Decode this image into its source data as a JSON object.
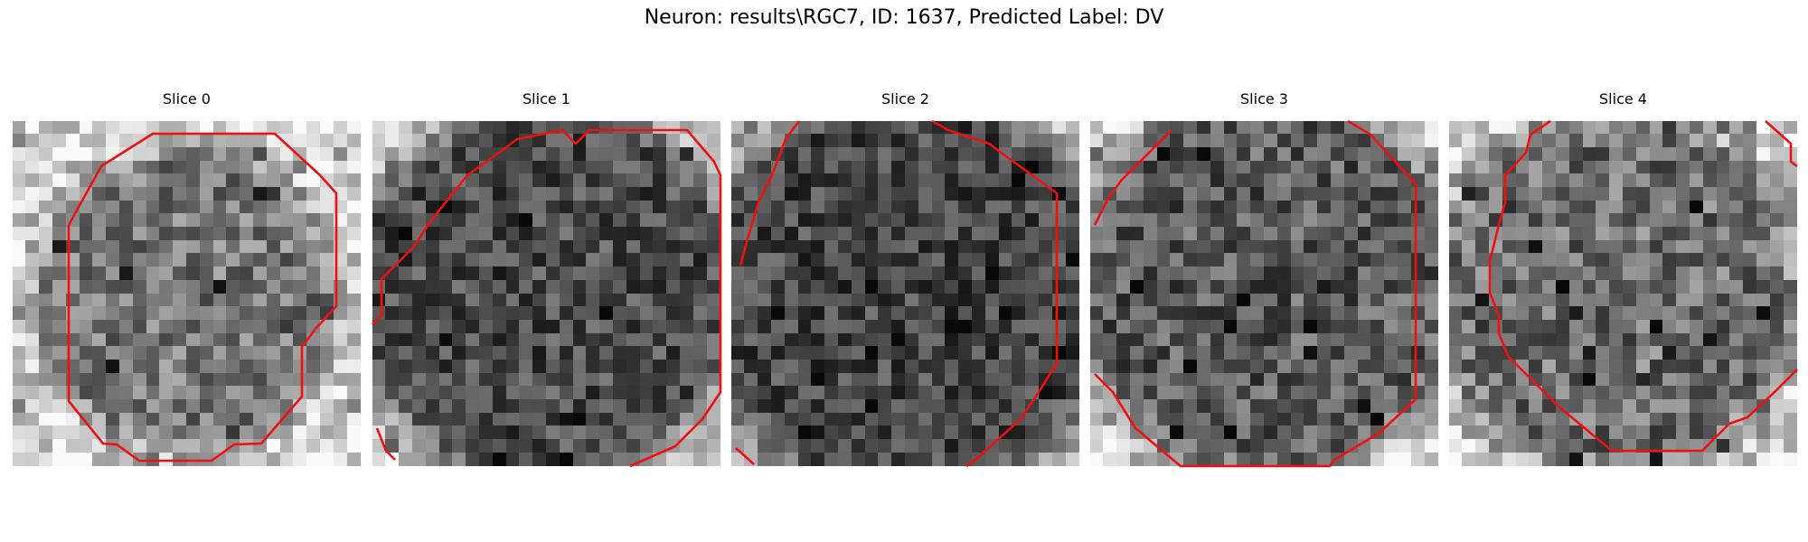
{
  "figure": {
    "title": "Neuron: results\\RGC7, ID: 1637, Predicted Label: DV"
  },
  "panels": [
    {
      "title": "Slice 0",
      "icon": "grayscale-image-slice"
    },
    {
      "title": "Slice 1",
      "icon": "grayscale-image-slice"
    },
    {
      "title": "Slice 2",
      "icon": "grayscale-image-slice"
    },
    {
      "title": "Slice 3",
      "icon": "grayscale-image-slice"
    },
    {
      "title": "Slice 4",
      "icon": "grayscale-image-slice"
    }
  ],
  "colors": {
    "contour": "#ee1111",
    "background": "#ffffff"
  }
}
